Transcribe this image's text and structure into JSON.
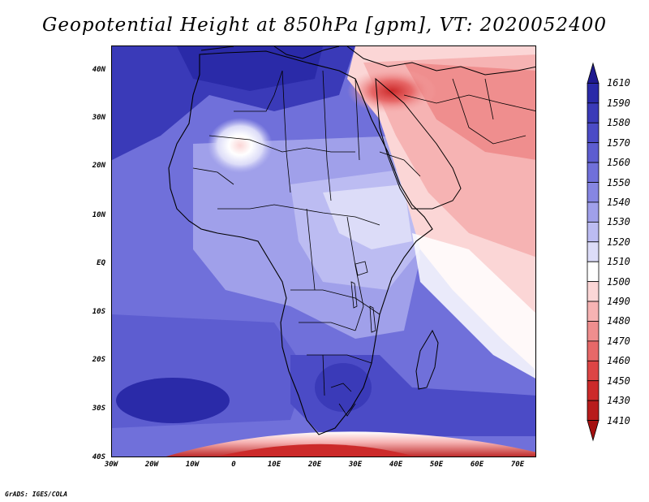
{
  "title": "Geopotential Height at 850hPa [gpm], VT: 2020052400",
  "map": {
    "lat_labels": [
      "40N",
      "30N",
      "20N",
      "10N",
      "EQ",
      "10S",
      "20S",
      "30S",
      "40S"
    ],
    "lon_labels": [
      "30W",
      "20W",
      "10W",
      "0",
      "10E",
      "20E",
      "30E",
      "40E",
      "50E",
      "60E",
      "70E"
    ]
  },
  "colorbar": {
    "labels": [
      "1610",
      "1590",
      "1580",
      "1570",
      "1560",
      "1550",
      "1540",
      "1530",
      "1520",
      "1510",
      "1500",
      "1490",
      "1480",
      "1470",
      "1460",
      "1450",
      "1430",
      "1410"
    ],
    "colors": [
      "#1f1a8f",
      "#2a2aa8",
      "#3a3ab8",
      "#4b4bc6",
      "#5d5dd0",
      "#7070da",
      "#8686e2",
      "#a0a0ea",
      "#bcbcf2",
      "#dcdcf8",
      "#ffffff",
      "#fbd6d6",
      "#f6b3b3",
      "#ef8e8e",
      "#e76868",
      "#dd4545",
      "#cc2a2a",
      "#b81c1c",
      "#a41010"
    ]
  },
  "footer": "GrADS: IGES/COLA"
}
